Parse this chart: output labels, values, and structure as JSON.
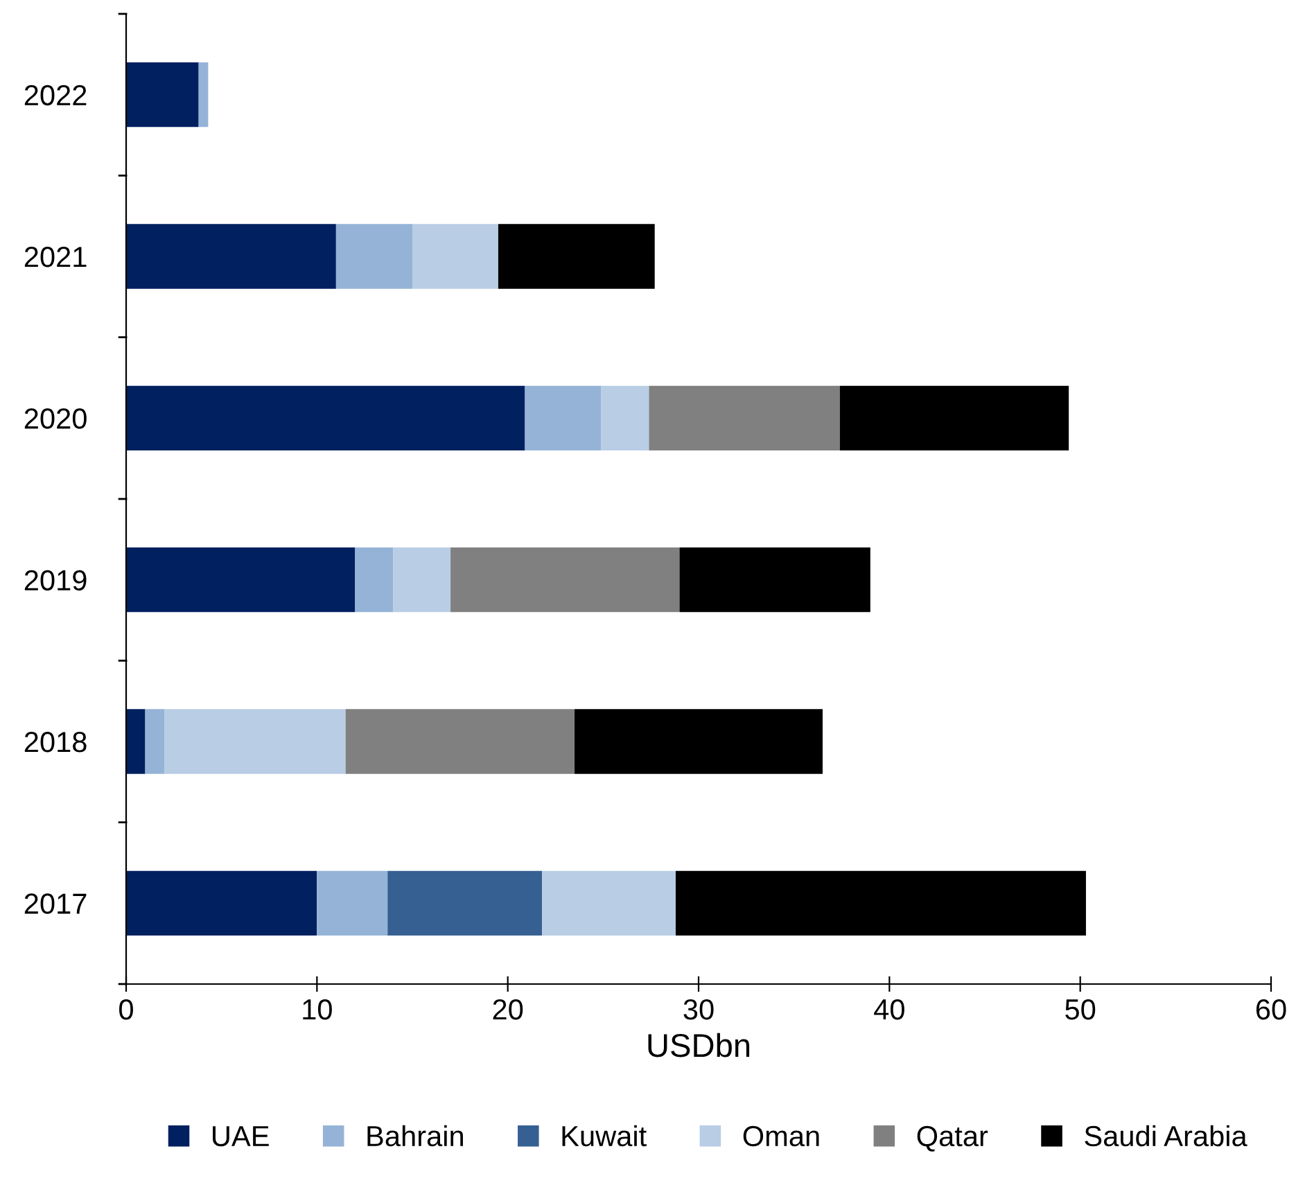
{
  "chart_data": {
    "type": "bar",
    "orientation": "horizontal",
    "stacked": true,
    "xlabel": "USDbn",
    "categories": [
      "2022",
      "2021",
      "2020",
      "2019",
      "2018",
      "2017"
    ],
    "series": [
      {
        "name": "UAE",
        "color": "#002060",
        "values": [
          3.8,
          11,
          20.9,
          12,
          1,
          10
        ]
      },
      {
        "name": "Bahrain",
        "color": "#95b3d7",
        "values": [
          0.5,
          4,
          4,
          2,
          1,
          3.7
        ]
      },
      {
        "name": "Kuwait",
        "color": "#366092",
        "values": [
          null,
          null,
          null,
          null,
          null,
          8.1
        ]
      },
      {
        "name": "Oman",
        "color": "#b9cde5",
        "values": [
          null,
          4.5,
          2.5,
          3,
          9.5,
          7
        ]
      },
      {
        "name": "Qatar",
        "color": "#808080",
        "values": [
          null,
          null,
          10,
          12,
          12,
          null
        ]
      },
      {
        "name": "Saudi Arabia",
        "color": "#000000",
        "values": [
          null,
          8.2,
          12,
          10,
          13,
          21.5
        ]
      }
    ],
    "xlim": [
      0,
      60
    ],
    "xticks": [
      0,
      10,
      20,
      30,
      40,
      50,
      60
    ],
    "grid": false,
    "legend": "bottom"
  }
}
